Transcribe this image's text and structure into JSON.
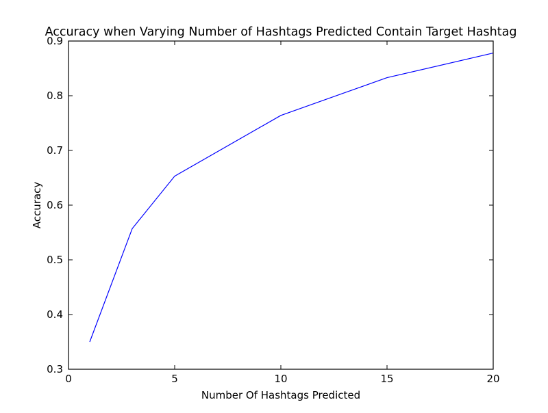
{
  "chart_data": {
    "type": "line",
    "title": "Accuracy when Varying Number of Hashtags Predicted Contain Target Hashtag",
    "xlabel": "Number Of Hashtags Predicted",
    "ylabel": "Accuracy",
    "xlim": [
      0,
      20
    ],
    "ylim": [
      0.3,
      0.9
    ],
    "xticks": [
      0,
      5,
      10,
      15,
      20
    ],
    "xtick_labels": [
      "0",
      "5",
      "10",
      "15",
      "20"
    ],
    "yticks": [
      0.3,
      0.4,
      0.5,
      0.6,
      0.7,
      0.8,
      0.9
    ],
    "ytick_labels": [
      "0.3",
      "0.4",
      "0.5",
      "0.6",
      "0.7",
      "0.8",
      "0.9"
    ],
    "grid": false,
    "series": [
      {
        "color": "#0000ff",
        "x": [
          1,
          3,
          5,
          10,
          15,
          20
        ],
        "y": [
          0.35,
          0.557,
          0.653,
          0.764,
          0.833,
          0.878
        ]
      }
    ]
  }
}
